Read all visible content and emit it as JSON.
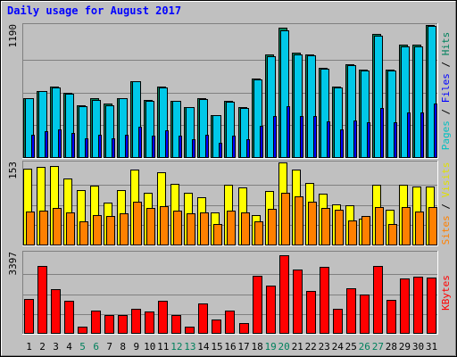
{
  "chart_data": {
    "type": "bar",
    "title": "Daily usage for August 2017",
    "x": [
      "1",
      "2",
      "3",
      "4",
      "5",
      "6",
      "7",
      "8",
      "9",
      "10",
      "11",
      "12",
      "13",
      "14",
      "15",
      "16",
      "17",
      "18",
      "19",
      "20",
      "21",
      "22",
      "23",
      "24",
      "25",
      "26",
      "27",
      "28",
      "29",
      "30",
      "31"
    ],
    "weekend_days": [
      "5",
      "6",
      "12",
      "13",
      "19",
      "20",
      "26",
      "27"
    ],
    "grid": true,
    "panels": [
      {
        "id": "top",
        "ymax": 1190,
        "ymax_label": "1190",
        "side_labels": [
          {
            "text": "Pages",
            "color": "#00c0c0"
          },
          {
            "text": " / ",
            "color": "#000000"
          },
          {
            "text": "Files",
            "color": "#0000ff"
          },
          {
            "text": " / ",
            "color": "#000000"
          },
          {
            "text": "Hits",
            "color": "#00805c"
          }
        ],
        "series": [
          {
            "color": "#00805c",
            "values": [
              540,
              610,
              645,
              590,
              480,
              540,
              490,
              540,
              700,
              525,
              650,
              520,
              460,
              540,
              390,
              520,
              460,
              720,
              935,
              1180,
              955,
              940,
              820,
              650,
              850,
              805,
              1125,
              805,
              1030,
              1025,
              1220
            ]
          },
          {
            "color": "#00c8e8",
            "values": [
              540,
              605,
              640,
              585,
              470,
              530,
              480,
              540,
              695,
              520,
              640,
              515,
              460,
              535,
              385,
              510,
              455,
              710,
              920,
              1160,
              940,
              930,
              810,
              640,
              840,
              790,
              1110,
              795,
              1015,
              1015,
              1200
            ]
          },
          {
            "color": "#0000ff",
            "values": [
              210,
              240,
              260,
              230,
              180,
              210,
              180,
              210,
              280,
              200,
              250,
              200,
              170,
              210,
              140,
              200,
              170,
              290,
              380,
              470,
              380,
              380,
              330,
              260,
              340,
              320,
              450,
              320,
              410,
              410,
              490
            ]
          }
        ]
      },
      {
        "id": "middle",
        "ymax": 153,
        "ymax_label": "153",
        "side_labels": [
          {
            "text": "Sites",
            "color": "#ff8000"
          },
          {
            "text": " / ",
            "color": "#000000"
          },
          {
            "text": "Visits",
            "color": "#e0e000"
          }
        ],
        "series": [
          {
            "color": "#ffff00",
            "values": [
              145,
              148,
              150,
              126,
              105,
              112,
              80,
              105,
              143,
              100,
              138,
              116,
              100,
              90,
              63,
              115,
              110,
              58,
              103,
              158,
              143,
              117,
              98,
              77,
              75,
              50,
              114,
              68,
              114,
              111,
              111
            ]
          },
          {
            "color": "#ff8000",
            "values": [
              64,
              66,
              70,
              63,
              45,
              57,
              55,
              61,
              82,
              71,
              74,
              65,
              60,
              63,
              40,
              65,
              63,
              45,
              69,
              100,
              92,
              82,
              70,
              67,
              47,
              55,
              72,
              40,
              72,
              64,
              72
            ]
          }
        ]
      },
      {
        "id": "bottom",
        "ymax": 3397,
        "ymax_label": "3397",
        "side_labels": [
          {
            "text": "KBytes",
            "color": "#ff0000"
          }
        ],
        "series": [
          {
            "color": "#ff0000",
            "values": [
              1500,
              2900,
              1900,
              1400,
              300,
              1000,
              800,
              800,
              1050,
              950,
              1400,
              800,
              300,
              1300,
              600,
              1000,
              450,
              2500,
              2050,
              3360,
              2750,
              1850,
              2850,
              1050,
              1950,
              1670,
              2900,
              1450,
              2350,
              2450,
              2420
            ]
          }
        ]
      }
    ]
  }
}
